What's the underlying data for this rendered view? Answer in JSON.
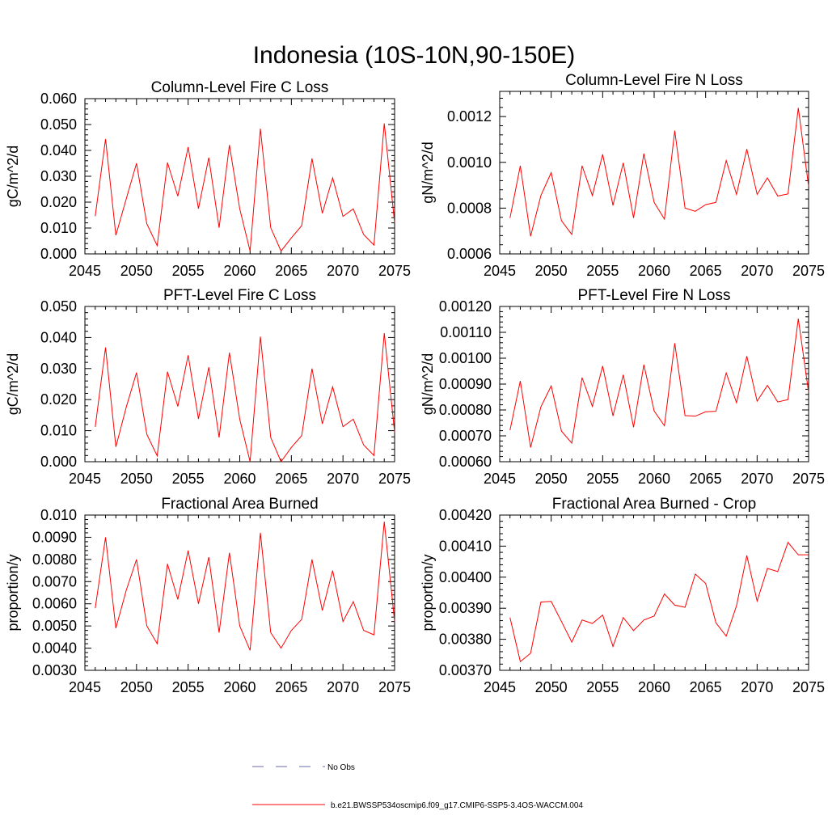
{
  "title": "Indonesia (10S-10N,90-150E)",
  "colors": {
    "model": "#ff0000",
    "obs": "#6a6aa8",
    "axis": "#000000"
  },
  "legend": {
    "obs_label": "No Obs",
    "model_label": "b.e21.BWSSP534oscmip6.f09_g17.CMIP6-SSP5-3.4OS-WACCM.004"
  },
  "chart_data": [
    {
      "type": "line",
      "title": "Column-Level Fire C Loss",
      "ylabel": "gC/m^2/d",
      "xlim": [
        2045,
        2075
      ],
      "ylim": [
        0.0,
        0.06
      ],
      "xticks": [
        "2045",
        "2050",
        "2055",
        "2060",
        "2065",
        "2070",
        "2075"
      ],
      "yticks": [
        "0.000",
        "0.010",
        "0.020",
        "0.030",
        "0.040",
        "0.050",
        "0.060"
      ],
      "x": [
        2046,
        2047,
        2048,
        2049,
        2050,
        2051,
        2052,
        2053,
        2054,
        2055,
        2056,
        2057,
        2058,
        2059,
        2060,
        2061,
        2062,
        2063,
        2064,
        2065,
        2066,
        2067,
        2068,
        2069,
        2070,
        2071,
        2072,
        2073,
        2074,
        2075
      ],
      "values": [
        0.0146,
        0.0444,
        0.0072,
        0.0212,
        0.035,
        0.0116,
        0.0032,
        0.0353,
        0.0223,
        0.0413,
        0.0175,
        0.0372,
        0.0101,
        0.0421,
        0.0174,
        0.0011,
        0.0484,
        0.0101,
        0.0011,
        0.0062,
        0.0109,
        0.0369,
        0.0157,
        0.0294,
        0.0145,
        0.0174,
        0.0075,
        0.0034,
        0.0504,
        0.012
      ]
    },
    {
      "type": "line",
      "title": "Column-Level Fire N Loss",
      "ylabel": "gN/m^2/d",
      "xlim": [
        2045,
        2075
      ],
      "ylim": [
        0.0006,
        0.00131
      ],
      "xticks": [
        "2045",
        "2050",
        "2055",
        "2060",
        "2065",
        "2070",
        "2075"
      ],
      "yticks": [
        "0.0006",
        "0.0008",
        "0.0010",
        "0.0012"
      ],
      "x": [
        2046,
        2047,
        2048,
        2049,
        2050,
        2051,
        2052,
        2053,
        2054,
        2055,
        2056,
        2057,
        2058,
        2059,
        2060,
        2061,
        2062,
        2063,
        2064,
        2065,
        2066,
        2067,
        2068,
        2069,
        2070,
        2071,
        2072,
        2073,
        2074,
        2075
      ],
      "values": [
        0.000757,
        0.000985,
        0.000677,
        0.000855,
        0.000955,
        0.000745,
        0.000685,
        0.000985,
        0.000855,
        0.001035,
        0.000812,
        0.000998,
        0.000757,
        0.001038,
        0.000825,
        0.000752,
        0.001138,
        0.0008,
        0.000786,
        0.000815,
        0.000825,
        0.001008,
        0.00086,
        0.001058,
        0.00086,
        0.000932,
        0.000853,
        0.000862,
        0.001238,
        0.000895
      ]
    },
    {
      "type": "line",
      "title": "PFT-Level Fire C Loss",
      "ylabel": "gC/m^2/d",
      "xlim": [
        2045,
        2075
      ],
      "ylim": [
        0.0,
        0.05
      ],
      "xticks": [
        "2045",
        "2050",
        "2055",
        "2060",
        "2065",
        "2070",
        "2075"
      ],
      "yticks": [
        "0.000",
        "0.010",
        "0.020",
        "0.030",
        "0.040",
        "0.050"
      ],
      "x": [
        2046,
        2047,
        2048,
        2049,
        2050,
        2051,
        2052,
        2053,
        2054,
        2055,
        2056,
        2057,
        2058,
        2059,
        2060,
        2061,
        2062,
        2063,
        2064,
        2065,
        2066,
        2067,
        2068,
        2069,
        2070,
        2071,
        2072,
        2073,
        2074,
        2075
      ],
      "values": [
        0.0112,
        0.0368,
        0.0048,
        0.0175,
        0.0287,
        0.0088,
        0.0019,
        0.029,
        0.0178,
        0.0343,
        0.0138,
        0.0304,
        0.0078,
        0.0351,
        0.0137,
        0.0,
        0.0403,
        0.0078,
        0.0,
        0.0046,
        0.0084,
        0.03,
        0.0122,
        0.0241,
        0.0113,
        0.0137,
        0.0054,
        0.002,
        0.0414,
        0.0095
      ]
    },
    {
      "type": "line",
      "title": "PFT-Level Fire N Loss",
      "ylabel": "gN/m^2/d",
      "xlim": [
        2045,
        2075
      ],
      "ylim": [
        0.0006,
        0.0012
      ],
      "xticks": [
        "2045",
        "2050",
        "2055",
        "2060",
        "2065",
        "2070",
        "2075"
      ],
      "yticks": [
        "0.00060",
        "0.00070",
        "0.00080",
        "0.00090",
        "0.00100",
        "0.00110",
        "0.00120"
      ],
      "x": [
        2046,
        2047,
        2048,
        2049,
        2050,
        2051,
        2052,
        2053,
        2054,
        2055,
        2056,
        2057,
        2058,
        2059,
        2060,
        2061,
        2062,
        2063,
        2064,
        2065,
        2066,
        2067,
        2068,
        2069,
        2070,
        2071,
        2072,
        2073,
        2074,
        2075
      ],
      "values": [
        0.000722,
        0.000912,
        0.000655,
        0.000812,
        0.000893,
        0.000718,
        0.000672,
        0.000925,
        0.000814,
        0.00097,
        0.000777,
        0.000936,
        0.000733,
        0.000975,
        0.000796,
        0.000739,
        0.001058,
        0.000778,
        0.000776,
        0.000793,
        0.000795,
        0.000943,
        0.000828,
        0.001008,
        0.000834,
        0.000895,
        0.000831,
        0.00084,
        0.001153,
        0.000868
      ]
    },
    {
      "type": "line",
      "title": "Fractional Area Burned",
      "ylabel": "proportion/y",
      "xlim": [
        2045,
        2075
      ],
      "ylim": [
        0.003,
        0.01
      ],
      "xticks": [
        "2045",
        "2050",
        "2055",
        "2060",
        "2065",
        "2070",
        "2075"
      ],
      "yticks": [
        "0.0030",
        "0.0040",
        "0.0050",
        "0.0060",
        "0.0070",
        "0.0080",
        "0.0090",
        "0.010"
      ],
      "x": [
        2046,
        2047,
        2048,
        2049,
        2050,
        2051,
        2052,
        2053,
        2054,
        2055,
        2056,
        2057,
        2058,
        2059,
        2060,
        2061,
        2062,
        2063,
        2064,
        2065,
        2066,
        2067,
        2068,
        2069,
        2070,
        2071,
        2072,
        2073,
        2074,
        2075
      ],
      "values": [
        0.0058,
        0.009,
        0.0049,
        0.0066,
        0.008,
        0.005,
        0.0042,
        0.0078,
        0.0062,
        0.0084,
        0.006,
        0.0081,
        0.0047,
        0.0083,
        0.005,
        0.0039,
        0.0092,
        0.0047,
        0.004,
        0.0048,
        0.0053,
        0.008,
        0.0057,
        0.0075,
        0.0052,
        0.0061,
        0.0048,
        0.0046,
        0.0097,
        0.0052
      ]
    },
    {
      "type": "line",
      "title": "Fractional Area Burned - Crop",
      "ylabel": "proportion/y",
      "xlim": [
        2045,
        2075
      ],
      "ylim": [
        0.0037,
        0.0042
      ],
      "xticks": [
        "2045",
        "2050",
        "2055",
        "2060",
        "2065",
        "2070",
        "2075"
      ],
      "yticks": [
        "0.00370",
        "0.00380",
        "0.00390",
        "0.00400",
        "0.00410",
        "0.00420"
      ],
      "x": [
        2046,
        2047,
        2048,
        2049,
        2050,
        2051,
        2052,
        2053,
        2054,
        2055,
        2056,
        2057,
        2058,
        2059,
        2060,
        2061,
        2062,
        2063,
        2064,
        2065,
        2066,
        2067,
        2068,
        2069,
        2070,
        2071,
        2072,
        2073,
        2074,
        2075
      ],
      "values": [
        0.00387,
        0.003728,
        0.003755,
        0.00392,
        0.003922,
        0.003857,
        0.003791,
        0.003862,
        0.003851,
        0.003878,
        0.003777,
        0.00387,
        0.003828,
        0.003862,
        0.003875,
        0.003946,
        0.00391,
        0.003903,
        0.00401,
        0.00398,
        0.003853,
        0.00381,
        0.003908,
        0.00407,
        0.003923,
        0.004028,
        0.004018,
        0.004112,
        0.004072,
        0.004072
      ]
    }
  ]
}
